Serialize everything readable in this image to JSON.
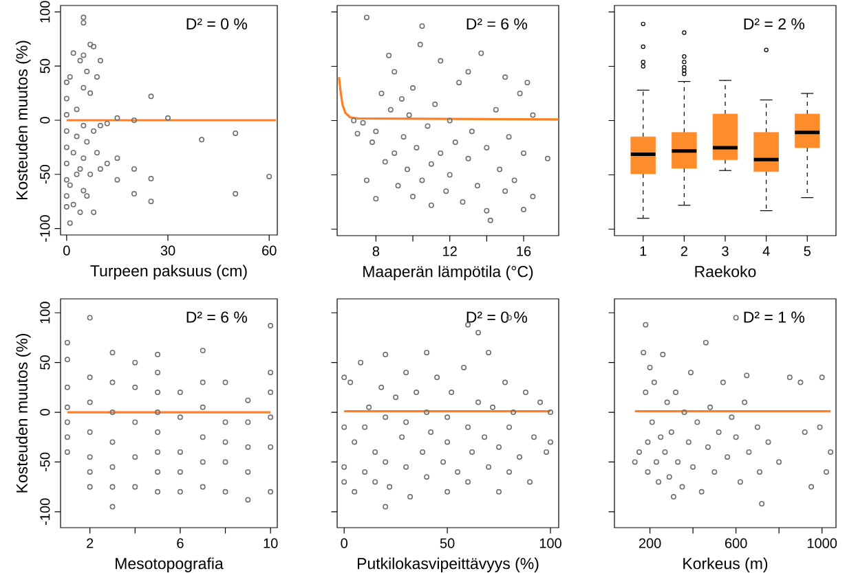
{
  "chart_data": [
    {
      "type": "scatter",
      "xlabel": "Turpeen paksuus (cm)",
      "ylabel": "Kosteuden muutos (%)",
      "annotations": [
        "D² = 0 %"
      ],
      "xlim": [
        -1.8,
        62.4
      ],
      "xticks": [
        0,
        30,
        60
      ],
      "ylim": [
        -106,
        106
      ],
      "yticks": [
        -100,
        -50,
        0,
        50,
        100
      ],
      "series": [
        {
          "marker": "circle",
          "color": "#707070",
          "x": [
            0,
            0,
            0,
            0,
            0,
            0,
            0,
            0,
            0,
            1,
            1,
            1,
            2,
            2,
            2,
            3,
            3,
            3,
            4,
            4,
            4,
            5,
            5,
            5,
            5,
            5,
            5,
            5,
            6,
            6,
            6,
            7,
            7,
            7,
            8,
            8,
            8,
            9,
            9,
            10,
            10,
            10,
            12,
            12,
            15,
            15,
            15,
            20,
            20,
            20,
            25,
            25,
            25,
            30,
            40,
            50,
            50,
            60
          ],
          "values": [
            35,
            20,
            5,
            -10,
            -25,
            -40,
            -55,
            -70,
            -80,
            -95,
            40,
            -60,
            62,
            -30,
            -78,
            10,
            -50,
            -15,
            55,
            -45,
            -85,
            95,
            90,
            60,
            30,
            -5,
            -35,
            -65,
            45,
            -20,
            -70,
            70,
            25,
            -50,
            68,
            -10,
            -85,
            40,
            -30,
            55,
            -45,
            -5,
            -3,
            -40,
            2,
            -35,
            -55,
            0,
            -45,
            -68,
            22,
            -54,
            -75,
            2,
            -18,
            -12,
            -68,
            -52
          ]
        },
        {
          "type": "line",
          "color": "#ff7f27",
          "x": [
            0,
            62
          ],
          "values": [
            0,
            0
          ]
        }
      ]
    },
    {
      "type": "scatter",
      "xlabel": "Maaperän lämpötila (°C)",
      "annotations": [
        "D² = 6 %"
      ],
      "xlim": [
        5.9,
        17.9
      ],
      "xticks": [
        8,
        {
          "value": 10,
          "label": null
        },
        12,
        {
          "value": 14,
          "label": null
        },
        16
      ],
      "ylim": [
        -106,
        106
      ],
      "yticks": [
        -100,
        -50,
        0,
        50,
        100
      ],
      "tick_labels": "x",
      "series": [
        {
          "marker": "circle",
          "color": "#707070",
          "x": [
            6.8,
            7,
            7.3,
            7.5,
            7.5,
            7.8,
            8,
            8,
            8.3,
            8.5,
            8.7,
            8.8,
            9,
            9,
            9.2,
            9.4,
            9.5,
            9.7,
            9.8,
            10,
            10,
            10.2,
            10.4,
            10.5,
            10.5,
            10.8,
            11,
            11,
            11.2,
            11.5,
            11.5,
            11.8,
            12,
            12,
            12.3,
            12.5,
            12.7,
            13,
            13,
            13.2,
            13.5,
            13.7,
            14,
            14,
            14.2,
            14.5,
            14.7,
            15,
            15,
            15.2,
            15.5,
            15.8,
            16,
            16,
            16.2,
            16.5,
            16.5,
            17.3
          ],
          "values": [
            0,
            -12,
            -2,
            95,
            -55,
            -20,
            -72,
            -10,
            25,
            -38,
            60,
            10,
            -30,
            45,
            -60,
            20,
            -15,
            -45,
            5,
            -70,
            30,
            -25,
            70,
            -55,
            87,
            -5,
            -40,
            -78,
            15,
            -30,
            55,
            -65,
            0,
            -50,
            -20,
            35,
            -75,
            -35,
            45,
            -10,
            -60,
            62,
            -25,
            -83,
            -92,
            10,
            -45,
            -65,
            40,
            -15,
            -55,
            25,
            -82,
            -30,
            35,
            -70,
            5,
            -35
          ]
        },
        {
          "type": "line",
          "color": "#ff7f27",
          "x": [
            6.0,
            6.1,
            6.2,
            6.35,
            6.6,
            7.0,
            17.9
          ],
          "values": [
            40,
            25,
            14,
            7,
            3,
            2,
            1
          ]
        }
      ]
    },
    {
      "type": "box",
      "xlabel": "Raekoko",
      "annotations": [
        "D² = 2 %"
      ],
      "categories": [
        "1",
        "2",
        "3",
        "4",
        "5"
      ],
      "ylim": [
        -106,
        106
      ],
      "yticks": [
        -100,
        -50,
        0,
        50,
        100
      ],
      "tick_labels": "x",
      "series": [
        {
          "color": "#ff8c2a",
          "boxes": [
            {
              "low": -90,
              "q1": -49,
              "median": -31,
              "q3": -15,
              "high": 28,
              "outliers": [
                89,
                68,
                54,
                50
              ]
            },
            {
              "low": -78,
              "q1": -44,
              "median": -28,
              "q3": -11,
              "high": 36,
              "outliers": [
                81,
                59,
                54,
                49,
                46,
                43
              ]
            },
            {
              "low": -46,
              "q1": -36,
              "median": -25,
              "q3": 6,
              "high": 37
            },
            {
              "low": -83,
              "q1": -47,
              "median": -36,
              "q3": -11,
              "high": 19,
              "outliers": [
                65
              ]
            },
            {
              "low": -71,
              "q1": -25,
              "median": -11,
              "q3": 6,
              "high": 25
            }
          ]
        }
      ]
    },
    {
      "type": "scatter",
      "xlabel": "Mesotopografia",
      "ylabel": "Kosteuden muutos (%)",
      "annotations": [
        "D² = 6 %"
      ],
      "xlim": [
        0.7,
        10.3
      ],
      "xticks": [
        2,
        {
          "value": 4,
          "label": null
        },
        6,
        {
          "value": 8,
          "label": null
        },
        10
      ],
      "ylim": [
        -116,
        114
      ],
      "yticks": [
        -100,
        -50,
        0,
        50,
        100
      ],
      "series": [
        {
          "marker": "circle",
          "color": "#707070",
          "x": [
            1,
            1,
            1,
            1,
            1,
            1,
            1,
            2,
            2,
            2,
            2,
            2,
            2,
            2,
            3,
            3,
            3,
            3,
            3,
            3,
            3,
            4,
            4,
            4,
            4,
            4,
            5,
            5,
            5,
            5,
            5,
            5,
            5,
            5,
            6,
            6,
            6,
            6,
            6,
            7,
            7,
            7,
            7,
            7,
            7,
            8,
            8,
            8,
            8,
            8,
            9,
            9,
            9,
            9,
            9,
            10,
            10,
            10,
            10,
            10,
            10
          ],
          "values": [
            70,
            53,
            25,
            5,
            -10,
            -25,
            -40,
            95,
            35,
            10,
            -20,
            -45,
            -60,
            -75,
            60,
            30,
            0,
            -30,
            -55,
            -75,
            -95,
            50,
            25,
            -10,
            -45,
            -75,
            58,
            40,
            20,
            0,
            -20,
            -40,
            -60,
            -80,
            20,
            -5,
            -40,
            -60,
            -80,
            62,
            30,
            5,
            -25,
            -50,
            -75,
            30,
            -10,
            -30,
            -50,
            -80,
            12,
            -10,
            -35,
            -60,
            -88,
            87,
            40,
            20,
            -5,
            -35,
            -80
          ]
        },
        {
          "type": "line",
          "color": "#ff7f27",
          "x": [
            1,
            10
          ],
          "values": [
            0,
            0
          ]
        }
      ]
    },
    {
      "type": "scatter",
      "xlabel": "Putkilokasvipeittävyys (%)",
      "annotations": [
        "D² = 0 %"
      ],
      "xlim": [
        -3.4,
        104
      ],
      "xticks": [
        0,
        50,
        100
      ],
      "ylim": [
        -116,
        114
      ],
      "yticks": [
        -100,
        -50,
        0,
        50,
        100
      ],
      "tick_labels": "x",
      "series": [
        {
          "marker": "circle",
          "color": "#707070",
          "x": [
            0,
            0,
            0,
            0,
            3,
            5,
            5,
            8,
            10,
            10,
            12,
            15,
            15,
            18,
            20,
            20,
            20,
            20,
            22,
            25,
            28,
            30,
            30,
            30,
            32,
            35,
            38,
            40,
            40,
            40,
            42,
            45,
            48,
            50,
            50,
            50,
            52,
            55,
            58,
            60,
            60,
            60,
            62,
            65,
            65,
            68,
            70,
            70,
            72,
            75,
            75,
            78,
            80,
            80,
            80,
            82,
            85,
            88,
            90,
            92,
            95,
            98,
            100,
            100
          ],
          "values": [
            35,
            -15,
            -55,
            -70,
            30,
            -30,
            -80,
            50,
            -15,
            -60,
            5,
            -40,
            -70,
            25,
            58,
            -5,
            -50,
            -95,
            -75,
            15,
            -25,
            40,
            -10,
            -55,
            -85,
            20,
            -40,
            60,
            0,
            -65,
            -20,
            35,
            -50,
            -5,
            -30,
            -80,
            20,
            -60,
            45,
            88,
            -15,
            -70,
            -40,
            80,
            10,
            -25,
            60,
            -55,
            5,
            -35,
            -80,
            30,
            95,
            -15,
            -60,
            0,
            -45,
            20,
            -70,
            -25,
            10,
            -40,
            0,
            -30
          ]
        },
        {
          "type": "line",
          "color": "#ff7f27",
          "x": [
            0,
            100
          ],
          "values": [
            1,
            1
          ]
        }
      ]
    },
    {
      "type": "scatter",
      "xlabel": "Korkeus (m)",
      "annotations": [
        "D² = 1 %"
      ],
      "xlim": [
        35,
        1065
      ],
      "xticks": [
        200,
        {
          "value": 400,
          "label": null
        },
        600,
        {
          "value": 800,
          "label": null
        },
        1000
      ],
      "ylim": [
        -116,
        114
      ],
      "yticks": [
        -100,
        -50,
        0,
        50,
        100
      ],
      "tick_labels": "x",
      "series": [
        {
          "marker": "circle",
          "color": "#707070",
          "x": [
            130,
            150,
            170,
            180,
            180,
            190,
            190,
            200,
            210,
            220,
            230,
            240,
            250,
            260,
            270,
            280,
            290,
            300,
            310,
            320,
            330,
            350,
            360,
            380,
            390,
            400,
            420,
            440,
            460,
            470,
            480,
            500,
            520,
            540,
            560,
            580,
            600,
            600,
            620,
            640,
            650,
            660,
            700,
            710,
            720,
            750,
            800,
            850,
            900,
            920,
            950,
            990,
            1000,
            1020,
            1040
          ],
          "values": [
            -50,
            -40,
            60,
            88,
            20,
            -30,
            -60,
            45,
            -10,
            30,
            -50,
            -70,
            -25,
            58,
            -40,
            10,
            -65,
            -20,
            -85,
            20,
            -50,
            -75,
            0,
            -30,
            40,
            -55,
            -10,
            -80,
            70,
            -35,
            5,
            -60,
            -20,
            30,
            -45,
            -5,
            95,
            -25,
            -70,
            10,
            37,
            -40,
            -15,
            -60,
            -92,
            -30,
            -50,
            35,
            30,
            -20,
            -75,
            -15,
            35,
            -60,
            -40
          ]
        },
        {
          "type": "line",
          "color": "#ff7f27",
          "x": [
            130,
            1040
          ],
          "values": [
            1,
            1
          ]
        }
      ]
    }
  ]
}
